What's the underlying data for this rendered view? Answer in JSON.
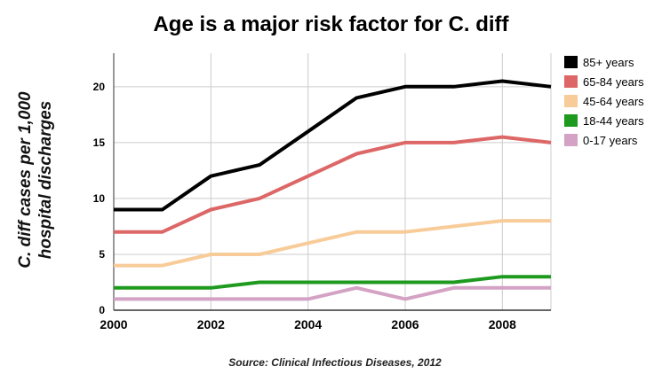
{
  "title": "Age is a major risk factor for C. diff",
  "source": "Source: Clinical Infectious Diseases, 2012",
  "chart_data": {
    "type": "line",
    "title": "Age is a major risk factor for C. diff",
    "ylabel": "C. diff cases per 1,000 hospital discharges",
    "ylabel_lines": [
      "C. diff cases per 1,000",
      "hospital discharges"
    ],
    "xlabel": "",
    "x": [
      2000,
      2001,
      2002,
      2003,
      2004,
      2005,
      2006,
      2007,
      2008,
      2009
    ],
    "xlim": [
      2000,
      2009
    ],
    "ylim": [
      0,
      23
    ],
    "xticks": [
      2000,
      2002,
      2004,
      2006,
      2008
    ],
    "yticks": [
      0,
      5,
      10,
      15,
      20
    ],
    "grid": true,
    "legend_position": "right",
    "series": [
      {
        "name": "85+ years",
        "color": "#000000",
        "values": [
          9,
          9,
          12,
          13,
          16,
          19,
          20,
          20,
          20.5,
          20
        ]
      },
      {
        "name": "65-84 years",
        "color": "#dd6666",
        "values": [
          7,
          7,
          9,
          10,
          12,
          14,
          15,
          15,
          15.5,
          15
        ]
      },
      {
        "name": "45-64 years",
        "color": "#f8cc99",
        "values": [
          4,
          4,
          5,
          5,
          6,
          7,
          7,
          7.5,
          8,
          8
        ]
      },
      {
        "name": "18-44 years",
        "color": "#1e9a1e",
        "values": [
          2,
          2,
          2,
          2.5,
          2.5,
          2.5,
          2.5,
          2.5,
          3,
          3
        ]
      },
      {
        "name": "0-17 years",
        "color": "#d4a2c4",
        "values": [
          1,
          1,
          1,
          1,
          1,
          2,
          1,
          2,
          2,
          2
        ]
      }
    ]
  }
}
